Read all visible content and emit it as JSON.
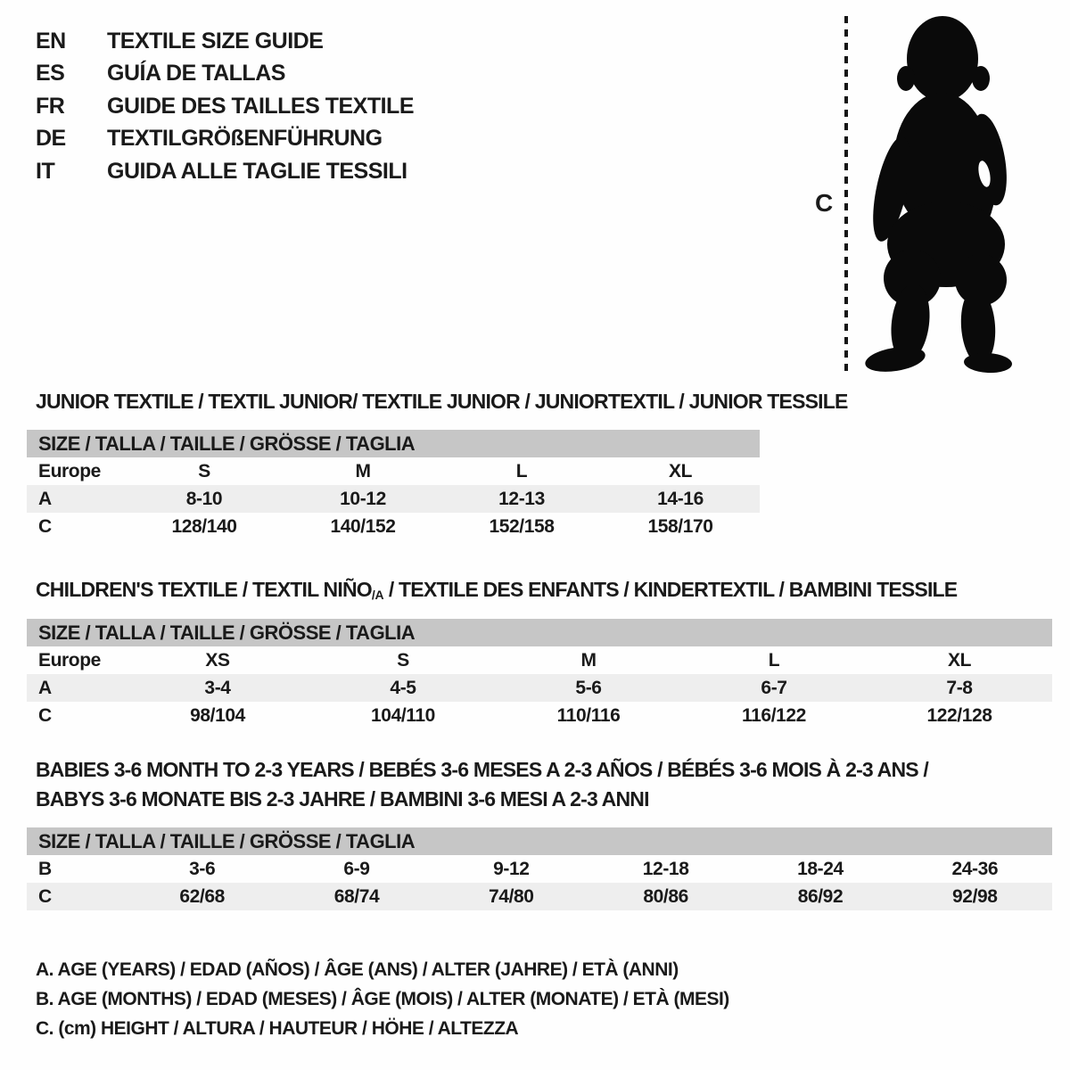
{
  "languages": [
    {
      "code": "EN",
      "label": "TEXTILE SIZE GUIDE"
    },
    {
      "code": "ES",
      "label": "GUÍA DE TALLAS"
    },
    {
      "code": "FR",
      "label": "GUIDE DES TAILLES TEXTILE"
    },
    {
      "code": "DE",
      "label": "TEXTILGRÖßENFÜHRUNG"
    },
    {
      "code": "IT",
      "label": "GUIDA ALLE TAGLIE TESSILI"
    }
  ],
  "figure": {
    "icon": "toddler-silhouette",
    "measure_label": "C"
  },
  "sections": [
    {
      "id": "junior",
      "title_lines": [
        "JUNIOR TEXTILE / TEXTIL JUNIOR/ TEXTILE JUNIOR / JUNIORTEXTIL / JUNIOR TESSILE"
      ],
      "size_header": "SIZE / TALLA / TAILLE / GRÖSSE / TAGLIA",
      "rows": [
        {
          "label": "Europe",
          "shaded": false,
          "values": [
            "S",
            "M",
            "L",
            "XL"
          ]
        },
        {
          "label": "A",
          "shaded": true,
          "values": [
            "8-10",
            "10-12",
            "12-13",
            "14-16"
          ]
        },
        {
          "label": "C",
          "shaded": false,
          "values": [
            "128/140",
            "140/152",
            "152/158",
            "158/170"
          ]
        }
      ]
    },
    {
      "id": "children",
      "title_lines": [
        "CHILDREN'S TEXTILE / TEXTIL NIÑO/A / TEXTILE DES ENFANTS / KINDERTEXTIL / BAMBINI TESSILE"
      ],
      "subscript_fragment": "/A",
      "size_header": "SIZE / TALLA / TAILLE / GRÖSSE / TAGLIA",
      "rows": [
        {
          "label": "Europe",
          "shaded": false,
          "values": [
            "XS",
            "S",
            "M",
            "L",
            "XL"
          ]
        },
        {
          "label": "A",
          "shaded": true,
          "values": [
            "3-4",
            "4-5",
            "5-6",
            "6-7",
            "7-8"
          ]
        },
        {
          "label": "C",
          "shaded": false,
          "values": [
            "98/104",
            "104/110",
            "110/116",
            "116/122",
            "122/128"
          ]
        }
      ]
    },
    {
      "id": "babies",
      "title_lines": [
        "BABIES 3-6 MONTH TO 2-3 YEARS / BEBÉS 3-6 MESES A 2-3 AÑOS / BÉBÉS 3-6 MOIS À 2-3 ANS /",
        "BABYS 3-6 MONATE BIS 2-3 JAHRE / BAMBINI 3-6 MESI A 2-3 ANNI"
      ],
      "size_header": "SIZE / TALLA / TAILLE / GRÖSSE / TAGLIA",
      "rows": [
        {
          "label": "B",
          "shaded": false,
          "values": [
            "3-6",
            "6-9",
            "9-12",
            "12-18",
            "18-24",
            "24-36"
          ]
        },
        {
          "label": "C",
          "shaded": true,
          "values": [
            "62/68",
            "68/74",
            "74/80",
            "80/86",
            "86/92",
            "92/98"
          ]
        }
      ]
    }
  ],
  "legend": [
    "A. AGE (YEARS) / EDAD (AÑOS) / ÂGE (ANS) / ALTER (JAHRE) / ETÀ (ANNI)",
    "B. AGE (MONTHS) / EDAD (MESES) / ÂGE (MOIS) / ALTER (MONATE) / ETÀ (MESI)",
    "C. (cm) HEIGHT / ALTURA / HAUTEUR / HÖHE / ALTEZZA"
  ],
  "colors": {
    "background": "#ffffff",
    "text": "#1a1a1a",
    "size_bar_gray": "#c6c6c6",
    "shaded_row_gray": "#eeeeee",
    "silhouette_black": "#0a0a0a"
  }
}
